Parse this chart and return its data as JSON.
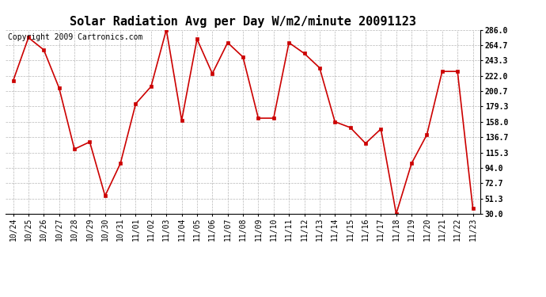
{
  "title": "Solar Radiation Avg per Day W/m2/minute 20091123",
  "copyright": "Copyright 2009 Cartronics.com",
  "labels": [
    "10/24",
    "10/25",
    "10/26",
    "10/27",
    "10/28",
    "10/29",
    "10/30",
    "10/31",
    "11/01",
    "11/02",
    "11/03",
    "11/04",
    "11/05",
    "11/06",
    "11/07",
    "11/08",
    "11/09",
    "11/10",
    "11/11",
    "11/12",
    "11/13",
    "11/14",
    "11/15",
    "11/16",
    "11/17",
    "11/18",
    "11/19",
    "11/20",
    "11/21",
    "11/22",
    "11/23"
  ],
  "values": [
    215,
    275,
    258,
    205,
    120,
    130,
    55,
    100,
    183,
    207,
    286,
    160,
    273,
    225,
    268,
    248,
    163,
    163,
    268,
    253,
    233,
    158,
    150,
    128,
    148,
    30,
    100,
    140,
    228,
    228,
    38
  ],
  "ymin": 30.0,
  "ymax": 286.0,
  "yticks": [
    30.0,
    51.3,
    72.7,
    94.0,
    115.3,
    136.7,
    158.0,
    179.3,
    200.7,
    222.0,
    243.3,
    264.7,
    286.0
  ],
  "line_color": "#cc0000",
  "marker_color": "#cc0000",
  "bg_color": "#ffffff",
  "plot_bg_color": "#ffffff",
  "grid_color": "#999999",
  "title_fontsize": 11,
  "copyright_fontsize": 7,
  "tick_fontsize": 7,
  "ytick_fontsize": 7
}
